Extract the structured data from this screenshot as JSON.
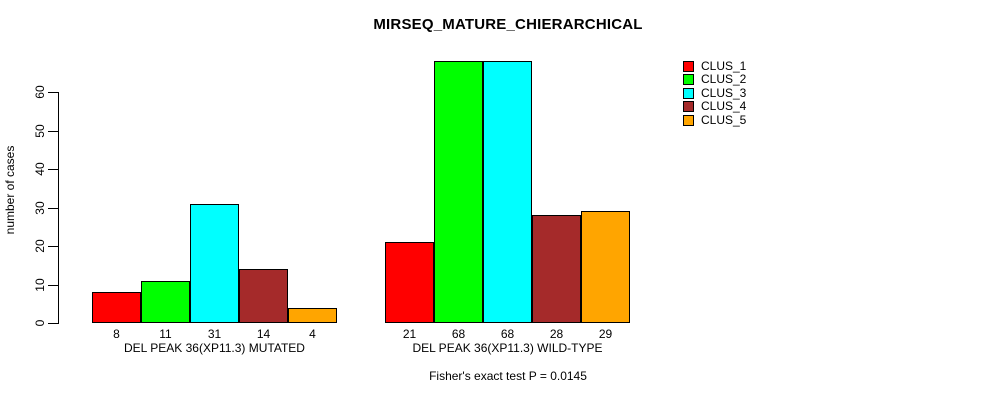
{
  "figure": {
    "background_color": "#ffffff",
    "axis_color": "#000000",
    "text_color": "#000000"
  },
  "chart_data": {
    "type": "bar",
    "title": "MIRSEQ_MATURE_CHIERARCHICAL",
    "xlabel": "",
    "ylabel": "number of cases",
    "ylim": [
      0,
      68
    ],
    "yticks": [
      0,
      10,
      20,
      30,
      40,
      50,
      60
    ],
    "grid": false,
    "bar_value_labels": true,
    "legend_position": "top-right-outside",
    "categories": [
      "DEL PEAK 36(XP11.3) MUTATED",
      "DEL PEAK 36(XP11.3) WILD-TYPE"
    ],
    "series": [
      {
        "name": "CLUS_1",
        "color": "#ff0000",
        "values": [
          8,
          21
        ]
      },
      {
        "name": "CLUS_2",
        "color": "#00ff00",
        "values": [
          11,
          68
        ]
      },
      {
        "name": "CLUS_3",
        "color": "#00ffff",
        "values": [
          31,
          68
        ]
      },
      {
        "name": "CLUS_4",
        "color": "#a52a2a",
        "values": [
          14,
          28
        ]
      },
      {
        "name": "CLUS_5",
        "color": "#ffa500",
        "values": [
          4,
          29
        ]
      }
    ],
    "annotation": "Fisher's exact test P = 0.0145"
  }
}
